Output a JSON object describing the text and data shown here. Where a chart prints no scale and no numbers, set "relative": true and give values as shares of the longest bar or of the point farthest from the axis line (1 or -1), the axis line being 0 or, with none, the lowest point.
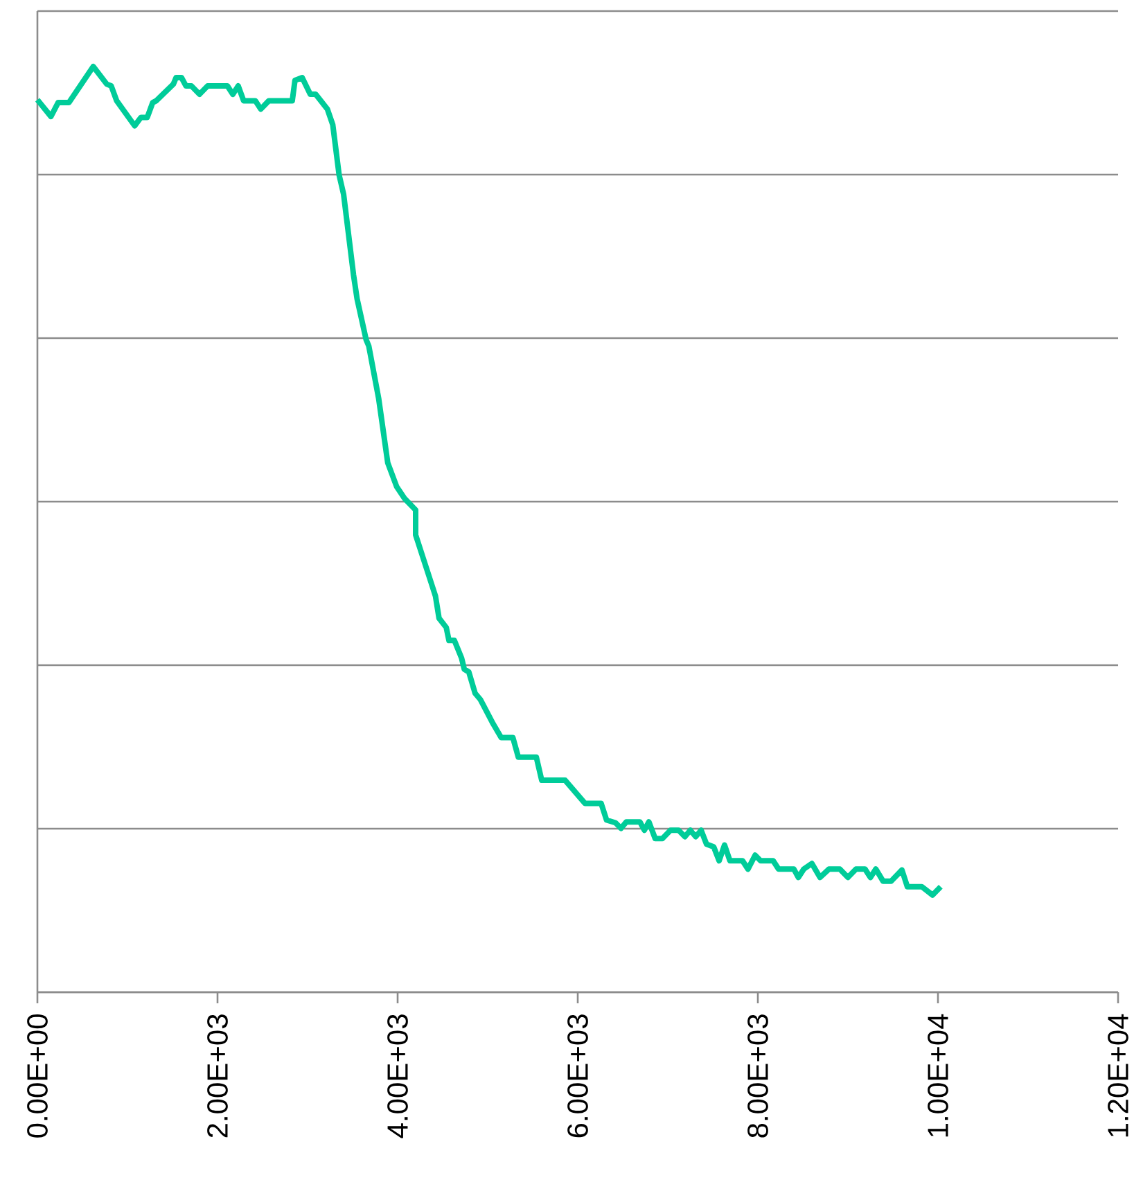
{
  "chart_data": {
    "type": "line",
    "relative": true,
    "x": [
      0,
      150,
      230,
      350,
      620,
      770,
      820,
      880,
      1080,
      1150,
      1220,
      1280,
      1320,
      1510,
      1540,
      1600,
      1650,
      1710,
      1800,
      1890,
      2110,
      2170,
      2230,
      2290,
      2420,
      2480,
      2570,
      2830,
      2860,
      2940,
      3030,
      3090,
      3220,
      3280,
      3350,
      3400,
      3510,
      3550,
      3650,
      3680,
      3790,
      3890,
      3990,
      4080,
      4200,
      4200,
      4370,
      4420,
      4460,
      4540,
      4570,
      4630,
      4710,
      4740,
      4790,
      4860,
      4920,
      5060,
      5150,
      5280,
      5340,
      5540,
      5600,
      5860,
      6080,
      6260,
      6320,
      6420,
      6480,
      6540,
      6690,
      6740,
      6790,
      6860,
      6940,
      7030,
      7120,
      7190,
      7250,
      7310,
      7370,
      7430,
      7510,
      7570,
      7630,
      7690,
      7830,
      7890,
      7970,
      8030,
      8170,
      8230,
      8400,
      8450,
      8510,
      8600,
      8690,
      8790,
      8910,
      9000,
      9090,
      9190,
      9250,
      9310,
      9390,
      9480,
      9600,
      9660,
      9820,
      9940,
      10030
    ],
    "series": [
      {
        "color": "#00cc99",
        "values": [
          0.964,
          0.946,
          0.961,
          0.961,
          1.0,
          0.981,
          0.979,
          0.963,
          0.936,
          0.945,
          0.945,
          0.961,
          0.963,
          0.981,
          0.988,
          0.988,
          0.979,
          0.979,
          0.97,
          0.979,
          0.979,
          0.97,
          0.979,
          0.963,
          0.963,
          0.954,
          0.963,
          0.963,
          0.985,
          0.988,
          0.97,
          0.97,
          0.954,
          0.937,
          0.883,
          0.862,
          0.775,
          0.749,
          0.705,
          0.698,
          0.641,
          0.572,
          0.546,
          0.533,
          0.521,
          0.494,
          0.443,
          0.428,
          0.404,
          0.394,
          0.38,
          0.38,
          0.361,
          0.349,
          0.346,
          0.323,
          0.316,
          0.29,
          0.275,
          0.275,
          0.254,
          0.254,
          0.229,
          0.229,
          0.204,
          0.204,
          0.186,
          0.183,
          0.177,
          0.184,
          0.184,
          0.175,
          0.184,
          0.166,
          0.166,
          0.175,
          0.175,
          0.168,
          0.175,
          0.168,
          0.175,
          0.16,
          0.157,
          0.142,
          0.159,
          0.142,
          0.142,
          0.133,
          0.148,
          0.142,
          0.142,
          0.133,
          0.133,
          0.124,
          0.133,
          0.139,
          0.124,
          0.133,
          0.133,
          0.124,
          0.133,
          0.133,
          0.124,
          0.133,
          0.12,
          0.12,
          0.132,
          0.114,
          0.114,
          0.105,
          0.114
        ]
      }
    ],
    "xlim": [
      0,
      12000
    ],
    "xticks": [
      {
        "value": 0,
        "label": "0.00E+00"
      },
      {
        "value": 2000,
        "label": "2.00E+03"
      },
      {
        "value": 4000,
        "label": "4.00E+03"
      },
      {
        "value": 6000,
        "label": "6.00E+03"
      },
      {
        "value": 8000,
        "label": "8.00E+03"
      },
      {
        "value": 10000,
        "label": "1.00E+04"
      },
      {
        "value": 12000,
        "label": "1.20E+04"
      }
    ],
    "grid": "y",
    "tick_labels": "x",
    "line_style": "solid",
    "marker": "none"
  }
}
